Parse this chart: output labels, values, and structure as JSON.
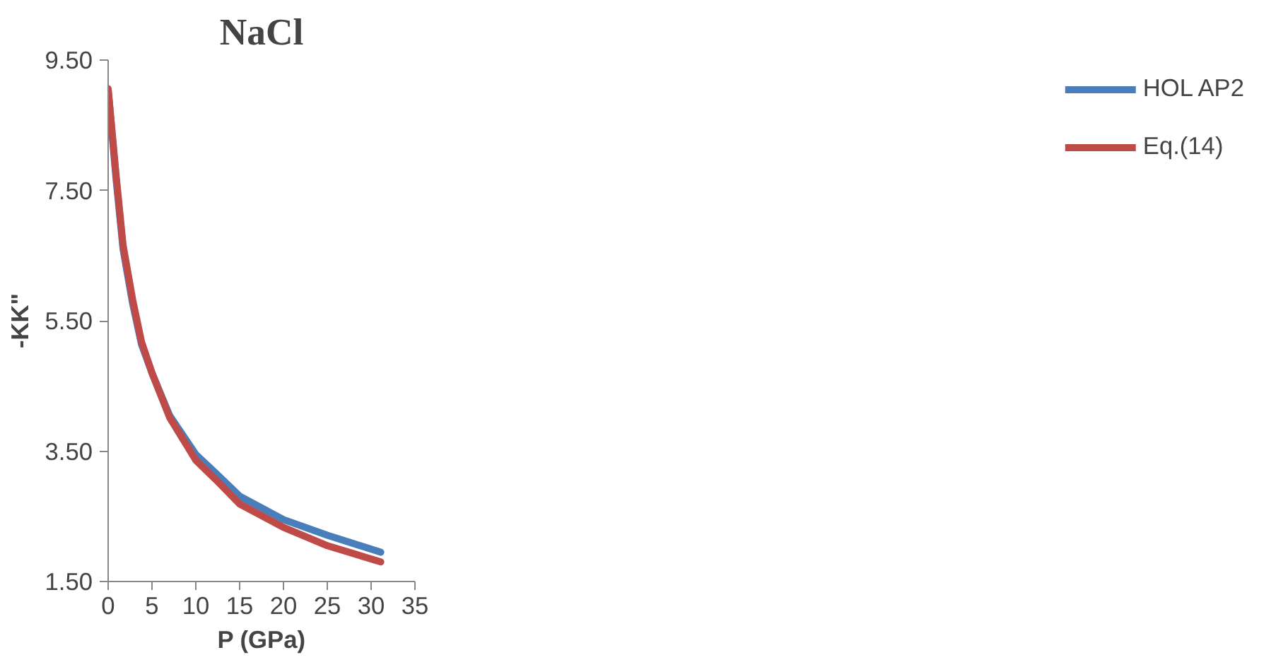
{
  "chart_data": {
    "type": "line",
    "title": "NaCl",
    "xlabel": "P (GPa)",
    "ylabel": "-KK\"",
    "xlim": [
      0,
      35
    ],
    "xticks": [
      0,
      5,
      10,
      15,
      20,
      25,
      30,
      35
    ],
    "ylim": [
      1.5,
      9.5
    ],
    "yticks": [
      {
        "value": 1.5,
        "label": "1.50"
      },
      {
        "value": 3.5,
        "label": "3.50"
      },
      {
        "value": 5.5,
        "label": "5.50"
      },
      {
        "value": 7.5,
        "label": "7.50"
      },
      {
        "value": 9.5,
        "label": "9.50"
      }
    ],
    "grid": false,
    "legend": "right",
    "marker": "none",
    "line_style": "solid",
    "x": [
      0,
      0.9,
      1.7,
      2.8,
      3.8,
      5,
      7,
      10,
      12.3,
      15,
      20,
      25,
      31.1
    ],
    "series": [
      {
        "name": "HOL AP2",
        "color": "#4a7ebb",
        "values": [
          9.04,
          7.68,
          6.6,
          5.76,
          5.14,
          4.7,
          4.05,
          3.45,
          3.16,
          2.81,
          2.45,
          2.21,
          1.95
        ]
      },
      {
        "name": "Eq.(14)",
        "color": "#be4b48",
        "values": [
          9.06,
          7.74,
          6.66,
          5.82,
          5.18,
          4.7,
          4.02,
          3.36,
          3.06,
          2.69,
          2.33,
          2.05,
          1.8
        ]
      }
    ]
  }
}
